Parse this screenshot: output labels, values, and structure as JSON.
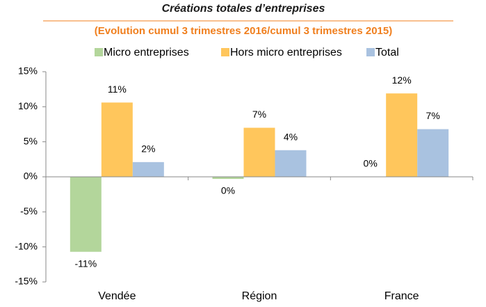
{
  "chart_data": {
    "type": "bar",
    "title": "Créations totales d’entreprises",
    "subtitle": "(Evolution cumul 3 trimestres 2016/cumul 3 trimestres 2015)",
    "categories": [
      "Vendée",
      "Région",
      "France"
    ],
    "series": [
      {
        "name": "Micro entreprises",
        "color": "#b3d69b",
        "values": [
          -10.7,
          -0.3,
          0
        ],
        "value_labels": [
          "-11%",
          "0%",
          "0%"
        ]
      },
      {
        "name": "Hors micro entreprises",
        "color": "#ffc65c",
        "values": [
          10.6,
          7.0,
          11.9
        ],
        "value_labels": [
          "11%",
          "7%",
          "12%"
        ]
      },
      {
        "name": "Total",
        "color": "#a9c2e0",
        "values": [
          2.1,
          3.8,
          6.8
        ],
        "value_labels": [
          "2%",
          "4%",
          "7%"
        ]
      }
    ],
    "ylim": [
      -15,
      15
    ],
    "yticks": [
      {
        "value": -15,
        "label": "-15%"
      },
      {
        "value": -10,
        "label": "-10%"
      },
      {
        "value": -5,
        "label": "-5%"
      },
      {
        "value": 0,
        "label": "0%"
      },
      {
        "value": 5,
        "label": "5%"
      },
      {
        "value": 10,
        "label": "10%"
      },
      {
        "value": 15,
        "label": "15%"
      }
    ],
    "legend": "top"
  }
}
